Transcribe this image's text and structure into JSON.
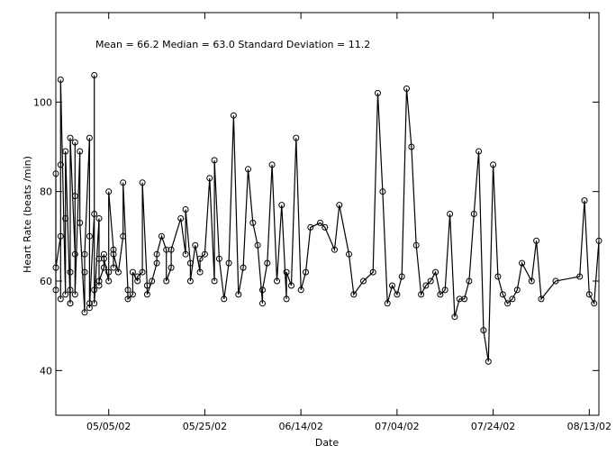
{
  "chart_data": {
    "type": "line",
    "annotation": "Mean = 66.2 Median = 63.0 Standard Deviation = 11.2",
    "xlabel": "Date",
    "ylabel": "Heart Rate (beats /min)",
    "x_ticks": [
      "05/05/02",
      "05/25/02",
      "06/14/02",
      "07/04/02",
      "07/24/02",
      "08/13/02"
    ],
    "y_ticks": [
      40,
      60,
      80,
      100
    ],
    "x_start": "04/24/02",
    "x_end": "08/15/02",
    "ylim": [
      30,
      120
    ],
    "grid": false,
    "marker": "circle",
    "series": [
      {
        "x": [
          "04/24/02",
          "04/24/02",
          "04/24/02",
          "04/25/02",
          "04/25/02",
          "04/25/02",
          "04/25/02",
          "04/26/02",
          "04/26/02",
          "04/26/02",
          "04/27/02",
          "04/27/02",
          "04/27/02",
          "04/27/02",
          "04/27/02",
          "04/28/02",
          "04/28/02",
          "04/28/02",
          "04/28/02",
          "04/29/02",
          "04/29/02",
          "04/30/02",
          "04/30/02",
          "04/30/02",
          "05/01/02",
          "05/01/02",
          "05/01/02",
          "05/01/02",
          "05/02/02",
          "05/02/02",
          "05/02/02",
          "05/02/02",
          "05/03/02",
          "05/03/02",
          "05/03/02",
          "05/03/02",
          "05/04/02",
          "05/04/02",
          "05/04/02",
          "05/05/02",
          "05/05/02",
          "05/05/02",
          "05/06/02",
          "05/06/02",
          "05/06/02",
          "05/07/02",
          "05/08/02",
          "05/08/02",
          "05/09/02",
          "05/09/02",
          "05/10/02",
          "05/10/02",
          "05/11/02",
          "05/11/02",
          "05/12/02",
          "05/12/02",
          "05/13/02",
          "05/13/02",
          "05/14/02",
          "05/15/02",
          "05/15/02",
          "05/16/02",
          "05/17/02",
          "05/17/02",
          "05/18/02",
          "05/18/02",
          "05/20/02",
          "05/21/02",
          "05/21/02",
          "05/22/02",
          "05/22/02",
          "05/23/02",
          "05/24/02",
          "05/24/02",
          "05/25/02",
          "05/26/02",
          "05/27/02",
          "05/27/02",
          "05/28/02",
          "05/29/02",
          "05/30/02",
          "05/31/02",
          "06/01/02",
          "06/02/02",
          "06/03/02",
          "06/04/02",
          "06/05/02",
          "06/06/02",
          "06/06/02",
          "06/07/02",
          "06/08/02",
          "06/09/02",
          "06/10/02",
          "06/11/02",
          "06/11/02",
          "06/12/02",
          "06/13/02",
          "06/14/02",
          "06/15/02",
          "06/16/02",
          "06/18/02",
          "06/19/02",
          "06/21/02",
          "06/22/02",
          "06/24/02",
          "06/25/02",
          "06/27/02",
          "06/29/02",
          "06/30/02",
          "07/01/02",
          "07/02/02",
          "07/03/02",
          "07/04/02",
          "07/05/02",
          "07/06/02",
          "07/07/02",
          "07/08/02",
          "07/09/02",
          "07/10/02",
          "07/11/02",
          "07/12/02",
          "07/13/02",
          "07/14/02",
          "07/15/02",
          "07/16/02",
          "07/17/02",
          "07/18/02",
          "07/19/02",
          "07/20/02",
          "07/21/02",
          "07/22/02",
          "07/23/02",
          "07/24/02",
          "07/25/02",
          "07/26/02",
          "07/27/02",
          "07/28/02",
          "07/29/02",
          "07/30/02",
          "08/01/02",
          "08/02/02",
          "08/03/02",
          "08/06/02",
          "08/11/02",
          "08/12/02",
          "08/13/02",
          "08/14/02",
          "08/15/02"
        ],
        "y": [
          58,
          84,
          63,
          70,
          56,
          86,
          105,
          57,
          74,
          89,
          55,
          58,
          62,
          55,
          92,
          66,
          91,
          79,
          57,
          89,
          73,
          53,
          62,
          66,
          92,
          55,
          70,
          54,
          75,
          58,
          106,
          55,
          74,
          65,
          59,
          60,
          63,
          66,
          65,
          60,
          62,
          80,
          67,
          63,
          66,
          62,
          70,
          82,
          58,
          56,
          57,
          62,
          60,
          61,
          62,
          82,
          59,
          57,
          60,
          64,
          66,
          70,
          67,
          60,
          63,
          67,
          74,
          66,
          76,
          64,
          60,
          68,
          62,
          65,
          66,
          83,
          60,
          87,
          65,
          56,
          64,
          97,
          57,
          63,
          85,
          73,
          68,
          55,
          58,
          64,
          86,
          60,
          77,
          56,
          62,
          59,
          92,
          58,
          62,
          72,
          73,
          72,
          67,
          77,
          66,
          57,
          60,
          62,
          102,
          80,
          55,
          59,
          57,
          61,
          103,
          90,
          68,
          57,
          59,
          60,
          62,
          57,
          58,
          75,
          52,
          56,
          56,
          60,
          75,
          89,
          49,
          42,
          86,
          61,
          57,
          55,
          56,
          58,
          64,
          60,
          69,
          56,
          60,
          61,
          78,
          57,
          55,
          69
        ]
      }
    ]
  }
}
